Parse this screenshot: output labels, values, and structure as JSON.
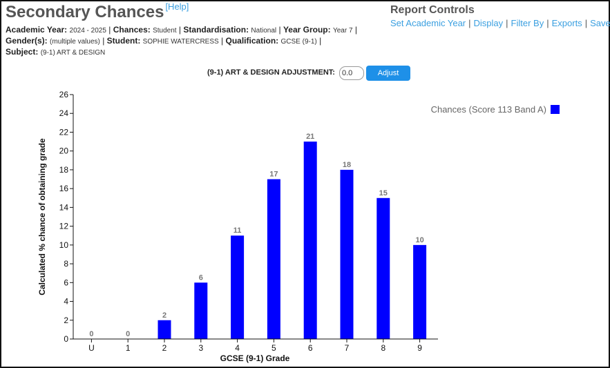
{
  "header": {
    "title": "Secondary Chances",
    "help_label": "[Help]"
  },
  "meta": {
    "academic_year_label": "Academic Year:",
    "academic_year_value": "2024 - 2025",
    "chances_label": "Chances:",
    "chances_value": "Student",
    "standardisation_label": "Standardisation:",
    "standardisation_value": "National",
    "year_group_label": "Year Group:",
    "year_group_value": "Year 7",
    "genders_label": "Gender(s):",
    "genders_value": "(multiple values)",
    "student_label": "Student:",
    "student_value": "SOPHIE WATERCRESS",
    "qualification_label": "Qualification:",
    "qualification_value": "GCSE (9-1)",
    "subject_label": "Subject:",
    "subject_value": "(9-1) ART & DESIGN",
    "separator": "|"
  },
  "report_controls": {
    "title": "Report Controls",
    "links": [
      "Set Academic Year",
      "Display",
      "Filter By",
      "Exports",
      "Save"
    ],
    "separator": "|"
  },
  "adjustment": {
    "label": "(9-1) ART & DESIGN ADJUSTMENT:",
    "value": "0.0",
    "button_label": "Adjust"
  },
  "chart_data": {
    "type": "bar",
    "categories": [
      "U",
      "1",
      "2",
      "3",
      "4",
      "5",
      "6",
      "7",
      "8",
      "9"
    ],
    "series": [
      {
        "name": "Chances (Score 113 Band A)",
        "values": [
          0,
          0,
          2,
          6,
          11,
          17,
          21,
          18,
          15,
          10
        ],
        "color": "#0000ff"
      }
    ],
    "xlabel": "GCSE (9-1) Grade",
    "ylabel": "Calculated % chance of obtaining grade",
    "ylim": [
      0,
      26
    ],
    "yticks": [
      0,
      2,
      4,
      6,
      8,
      10,
      12,
      14,
      16,
      18,
      20,
      22,
      24,
      26
    ],
    "data_labels": true,
    "grid": false,
    "legend_position": "top-right"
  }
}
